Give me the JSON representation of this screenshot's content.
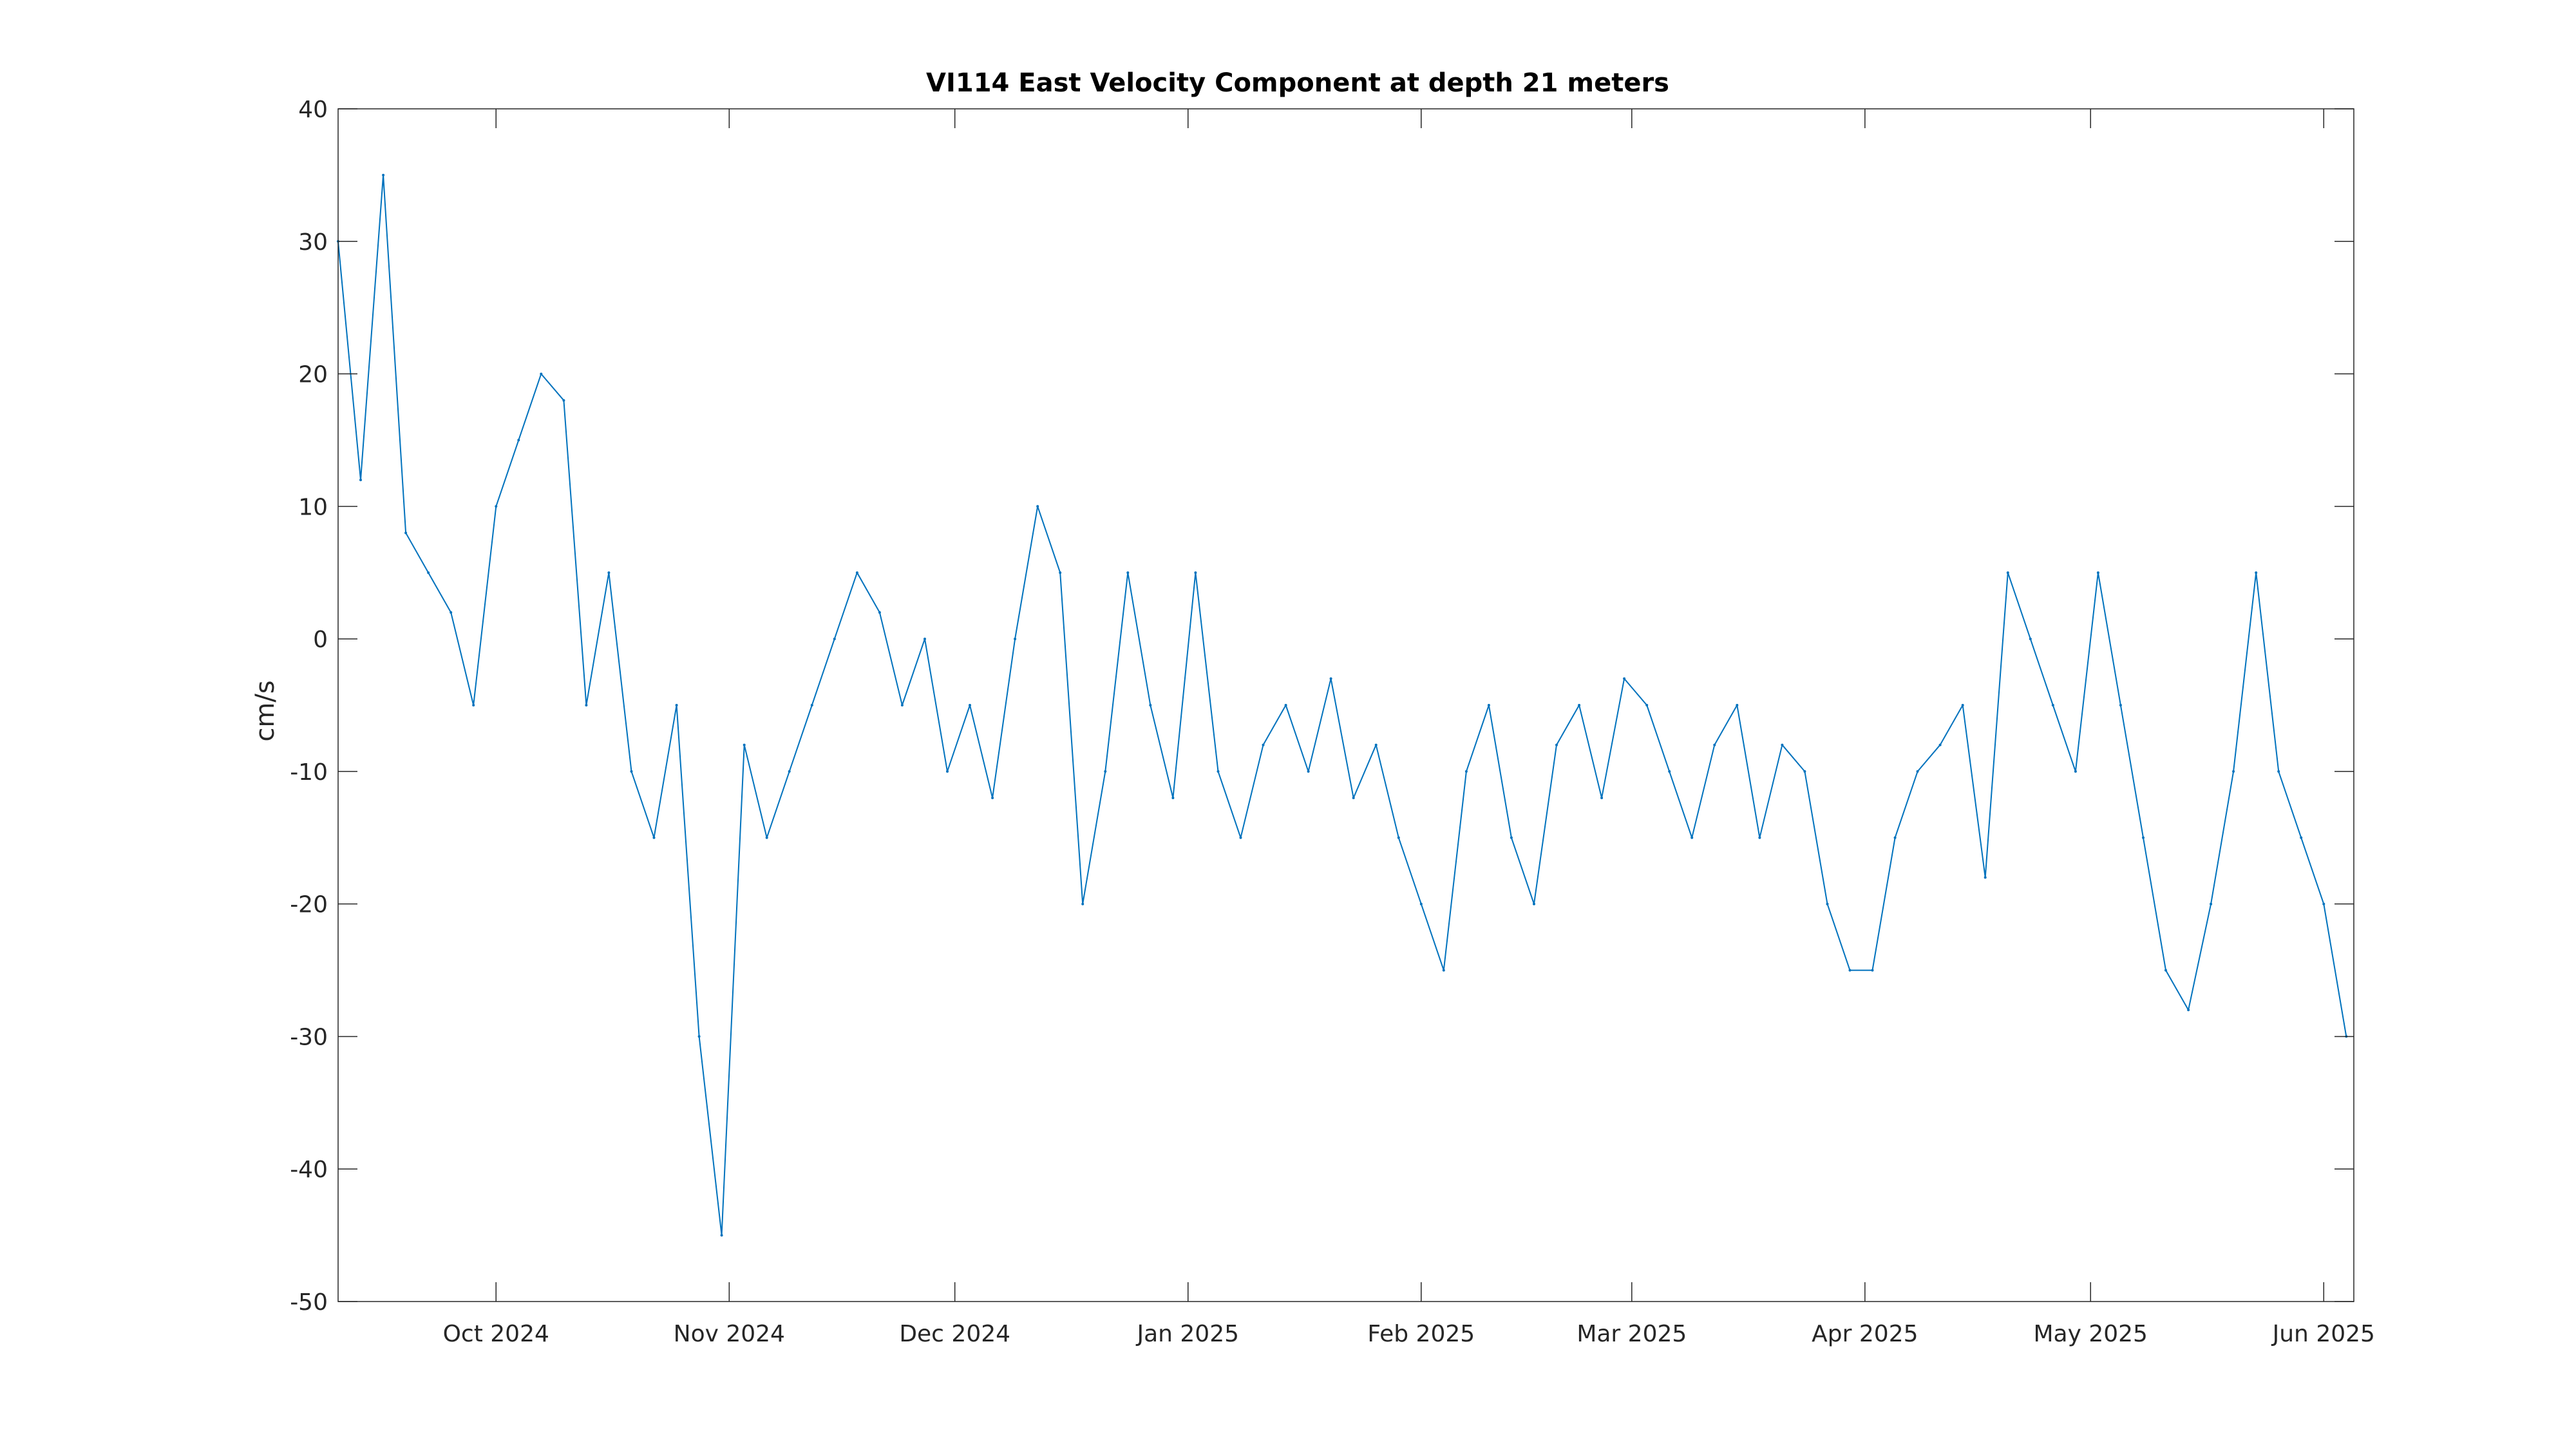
{
  "chart_data": {
    "type": "line",
    "title": "VI114 East Velocity Component at depth 21 meters",
    "xlabel": "",
    "ylabel": "cm/s",
    "xlim": [
      "2024-09-10",
      "2025-06-05"
    ],
    "ylim": [
      -50,
      40
    ],
    "grid": false,
    "legend": "none",
    "yticks": [
      -50,
      -40,
      -30,
      -20,
      -10,
      0,
      10,
      20,
      30,
      40
    ],
    "yticklabels": [
      "-50",
      "-40",
      "-30",
      "-20",
      "-10",
      "0",
      "10",
      "20",
      "30",
      "40"
    ],
    "xticks": [
      "2024-10-01",
      "2024-11-01",
      "2024-12-01",
      "2025-01-01",
      "2025-02-01",
      "2025-03-01",
      "2025-04-01",
      "2025-05-01",
      "2025-06-01"
    ],
    "xticklabels": [
      "Oct 2024",
      "Nov 2024",
      "Dec 2024",
      "Jan 2025",
      "Feb 2025",
      "Mar 2025",
      "Apr 2025",
      "May 2025",
      "Jun 2025"
    ],
    "series": [
      {
        "color": "#0072bd",
        "x": [
          "2024-09-10",
          "2024-09-13",
          "2024-09-16",
          "2024-09-19",
          "2024-09-22",
          "2024-09-25",
          "2024-09-28",
          "2024-10-01",
          "2024-10-04",
          "2024-10-07",
          "2024-10-10",
          "2024-10-13",
          "2024-10-16",
          "2024-10-19",
          "2024-10-22",
          "2024-10-25",
          "2024-10-28",
          "2024-10-31",
          "2024-11-03",
          "2024-11-06",
          "2024-11-09",
          "2024-11-12",
          "2024-11-15",
          "2024-11-18",
          "2024-11-21",
          "2024-11-24",
          "2024-11-27",
          "2024-11-30",
          "2024-12-03",
          "2024-12-06",
          "2024-12-09",
          "2024-12-12",
          "2024-12-15",
          "2024-12-18",
          "2024-12-21",
          "2024-12-24",
          "2024-12-27",
          "2024-12-30",
          "2025-01-02",
          "2025-01-05",
          "2025-01-08",
          "2025-01-11",
          "2025-01-14",
          "2025-01-17",
          "2025-01-20",
          "2025-01-23",
          "2025-01-26",
          "2025-01-29",
          "2025-02-01",
          "2025-02-04",
          "2025-02-07",
          "2025-02-10",
          "2025-02-13",
          "2025-02-16",
          "2025-02-19",
          "2025-02-22",
          "2025-02-25",
          "2025-02-28",
          "2025-03-03",
          "2025-03-06",
          "2025-03-09",
          "2025-03-12",
          "2025-03-15",
          "2025-03-18",
          "2025-03-21",
          "2025-03-24",
          "2025-03-27",
          "2025-03-30",
          "2025-04-02",
          "2025-04-05",
          "2025-04-08",
          "2025-04-11",
          "2025-04-14",
          "2025-04-17",
          "2025-04-20",
          "2025-04-23",
          "2025-04-26",
          "2025-04-29",
          "2025-05-02",
          "2025-05-05",
          "2025-05-08",
          "2025-05-11",
          "2025-05-14",
          "2025-05-17",
          "2025-05-20",
          "2025-05-23",
          "2025-05-26",
          "2025-05-29",
          "2025-06-01",
          "2025-06-04"
        ],
        "y": [
          30,
          12,
          35,
          8,
          5,
          2,
          -5,
          10,
          15,
          20,
          18,
          -5,
          5,
          -10,
          -15,
          -5,
          -30,
          -45,
          -8,
          -15,
          -10,
          -5,
          0,
          5,
          2,
          -5,
          0,
          -10,
          -5,
          -12,
          0,
          10,
          5,
          -20,
          -10,
          5,
          -5,
          -12,
          5,
          -10,
          -15,
          -8,
          -5,
          -10,
          -3,
          -12,
          -8,
          -15,
          -20,
          -25,
          -10,
          -5,
          -15,
          -20,
          -8,
          -5,
          -12,
          -3,
          -5,
          -10,
          -15,
          -8,
          -5,
          -15,
          -8,
          -10,
          -20,
          -25,
          -25,
          -15,
          -10,
          -8,
          -5,
          -18,
          5,
          0,
          -5,
          -10,
          5,
          -5,
          -15,
          -25,
          -28,
          -20,
          -10,
          5,
          -10,
          -15,
          -20,
          -30
        ]
      }
    ]
  }
}
